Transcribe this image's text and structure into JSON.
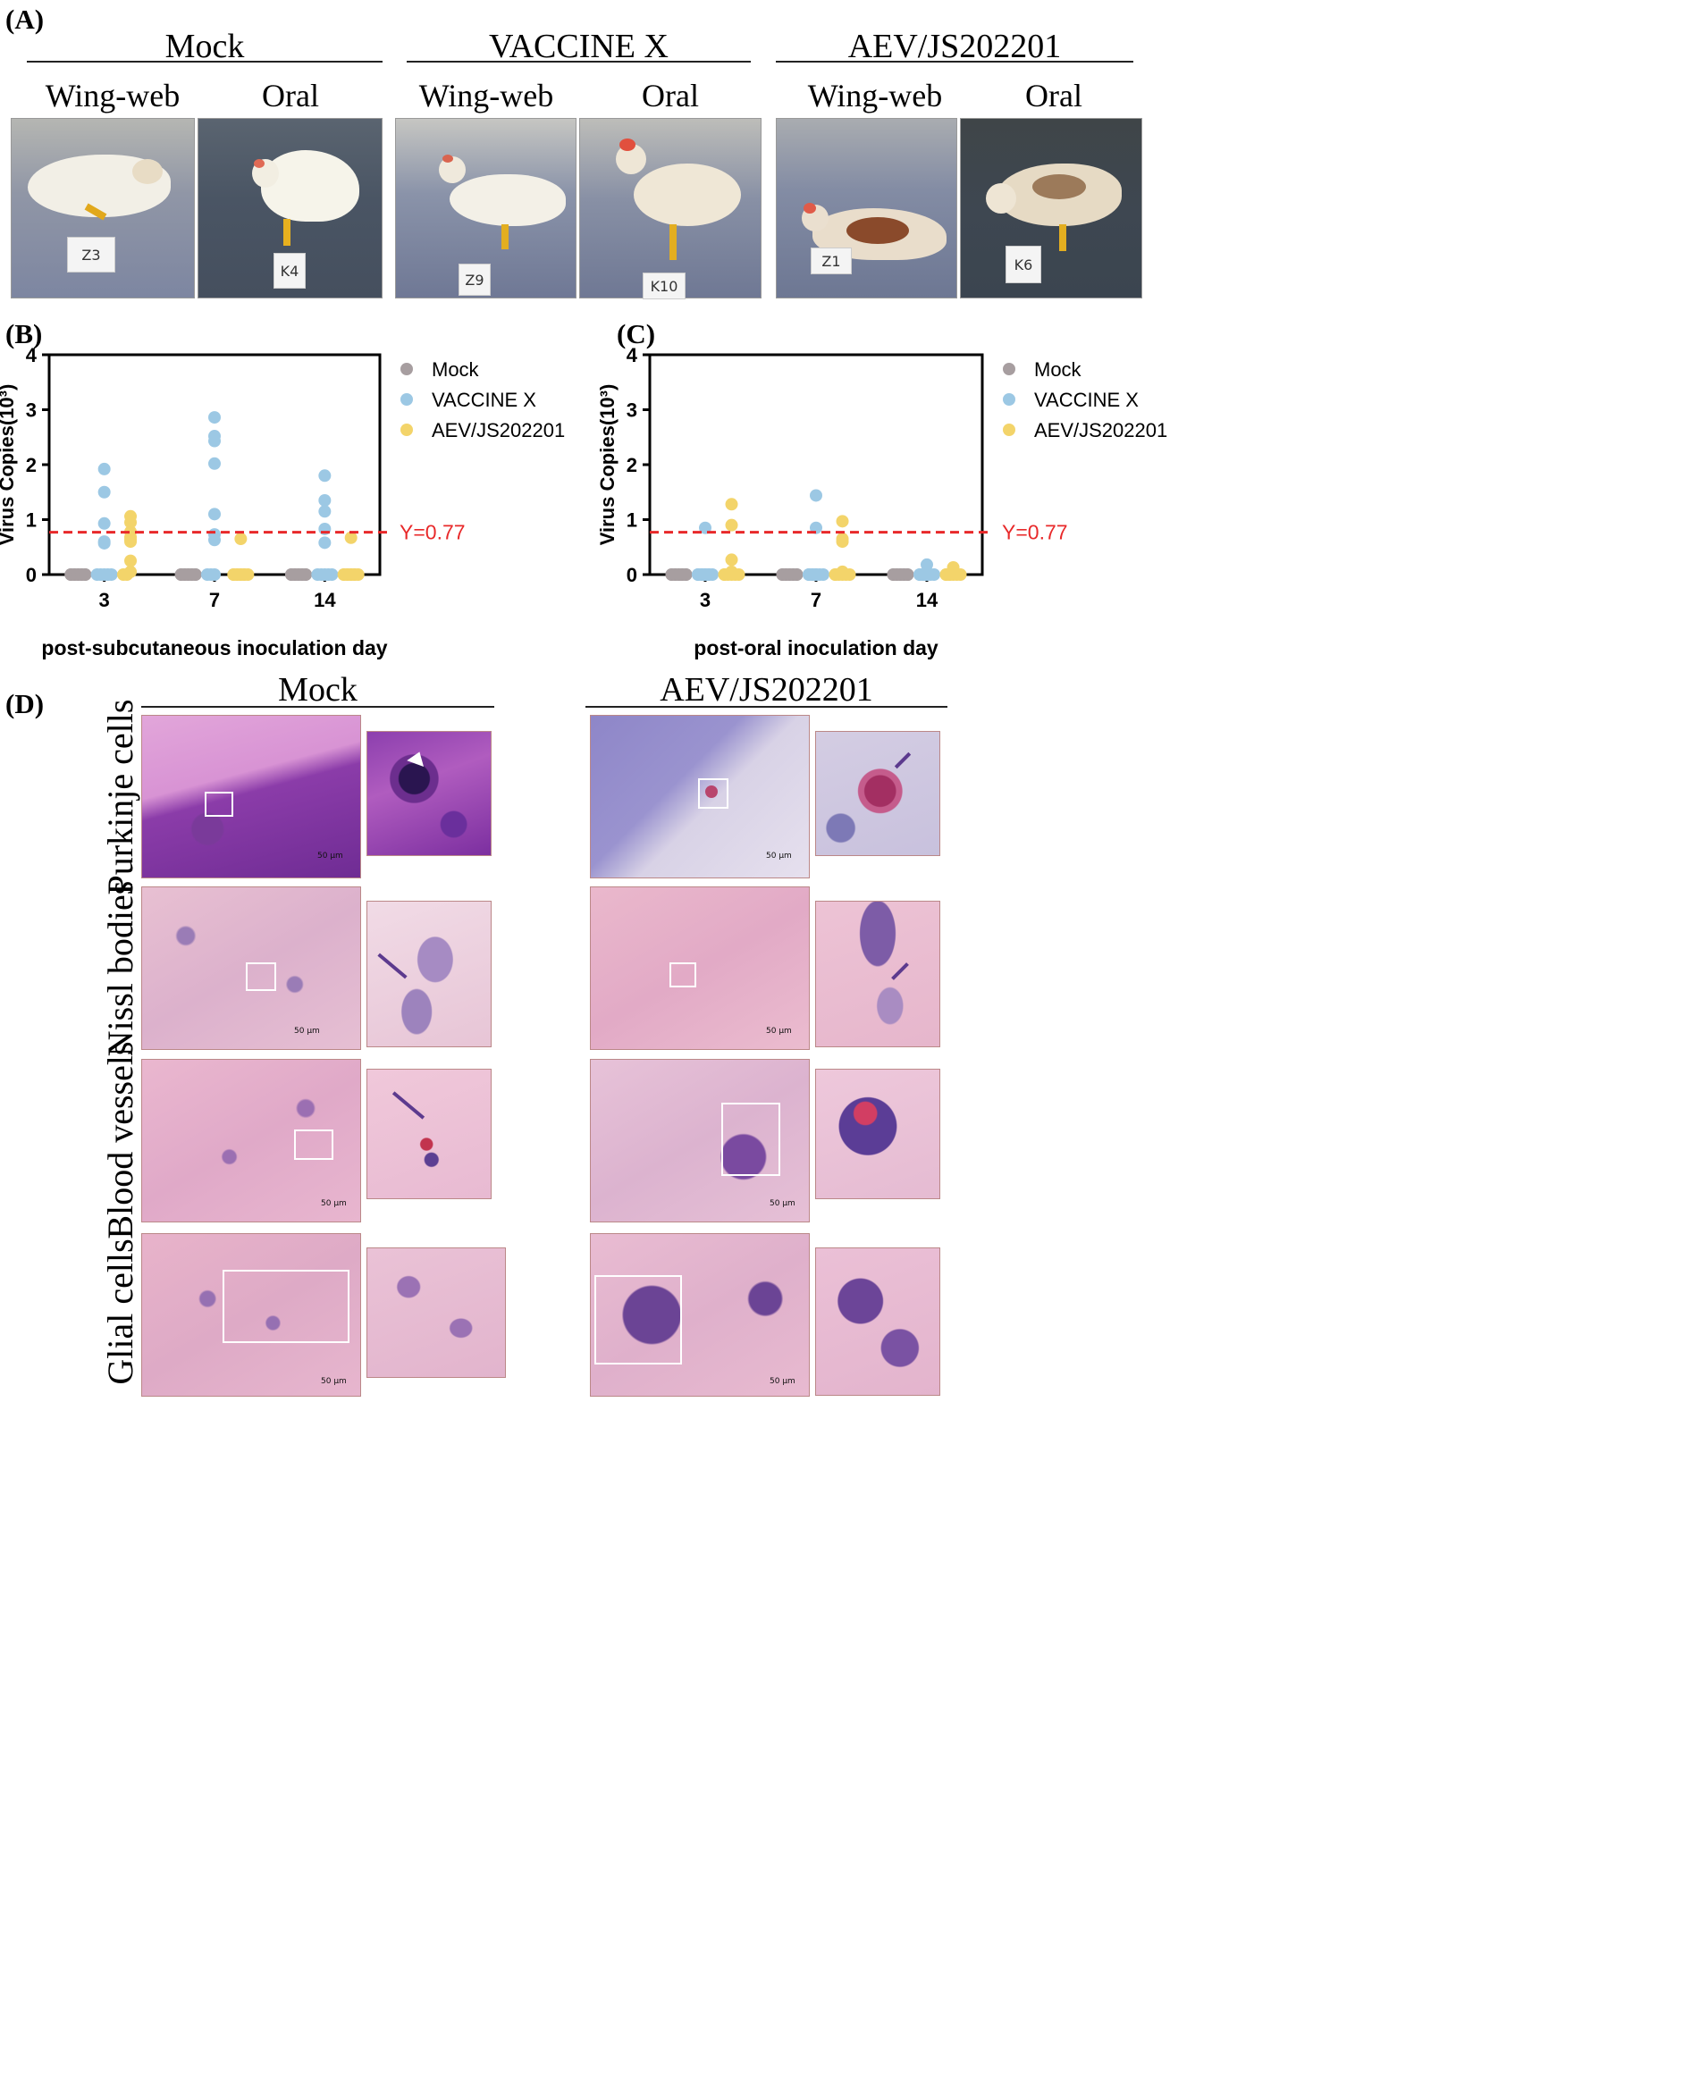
{
  "panel_a": {
    "label": "(A)",
    "groups": [
      {
        "name": "Mock",
        "routes": [
          "Wing-web",
          "Oral"
        ],
        "tags": [
          "Z3",
          "K4"
        ]
      },
      {
        "name": "VACCINE X",
        "routes": [
          "Wing-web",
          "Oral"
        ],
        "tags": [
          "Z9",
          "K10"
        ]
      },
      {
        "name": "AEV/JS202201",
        "routes": [
          "Wing-web",
          "Oral"
        ],
        "tags": [
          "Z1",
          "K6"
        ]
      }
    ]
  },
  "chart_data": [
    {
      "panel_label": "(B)",
      "type": "scatter",
      "ylabel": "Virus Copies(10³)",
      "xlabel": "post-subcutaneous inoculation day",
      "categories": [
        "3",
        "7",
        "14"
      ],
      "ylim": [
        0,
        4
      ],
      "yticks": [
        "0",
        "1",
        "2",
        "3",
        "4"
      ],
      "legend_position": "right",
      "reference_line": {
        "y": 0.77,
        "label": "Y=0.77",
        "color": "#e8292a"
      },
      "series": [
        {
          "name": "Mock",
          "color": "#a79ea0",
          "points": [
            [
              0,
              [
                0,
                0,
                0,
                0,
                0,
                0,
                0,
                0,
                0,
                0
              ]
            ],
            [
              1,
              [
                0,
                0,
                0,
                0,
                0,
                0,
                0,
                0,
                0,
                0
              ]
            ],
            [
              2,
              [
                0,
                0,
                0,
                0,
                0,
                0,
                0,
                0,
                0,
                0
              ]
            ]
          ]
        },
        {
          "name": "VACCINE X",
          "color": "#9cc8e4",
          "points": [
            [
              0,
              [
                1.92,
                1.5,
                0.93,
                0.6,
                0.57,
                0,
                0,
                0,
                0,
                0
              ]
            ],
            [
              1,
              [
                2.86,
                2.52,
                2.43,
                2.02,
                1.1,
                0.73,
                0.63,
                0,
                0,
                0
              ]
            ],
            [
              2,
              [
                1.8,
                1.35,
                1.15,
                0.83,
                0.58,
                0,
                0,
                0,
                0,
                0
              ]
            ]
          ]
        },
        {
          "name": "AEV/JS202201",
          "color": "#f3d46a",
          "points": [
            [
              0,
              [
                1.06,
                0.95,
                0.78,
                0.68,
                0.63,
                0.6,
                0.25,
                0.05,
                0,
                0
              ]
            ],
            [
              1,
              [
                0.65,
                0,
                0,
                0,
                0,
                0,
                0,
                0,
                0,
                0
              ]
            ],
            [
              2,
              [
                0.67,
                0,
                0,
                0,
                0,
                0,
                0,
                0,
                0,
                0
              ]
            ]
          ]
        }
      ]
    },
    {
      "panel_label": "(C)",
      "type": "scatter",
      "ylabel": "Virus Copies(10³)",
      "xlabel": "post-oral inoculation day",
      "categories": [
        "3",
        "7",
        "14"
      ],
      "ylim": [
        0,
        4
      ],
      "yticks": [
        "0",
        "1",
        "2",
        "3",
        "4"
      ],
      "legend_position": "right",
      "reference_line": {
        "y": 0.77,
        "label": "Y=0.77",
        "color": "#e8292a"
      },
      "series": [
        {
          "name": "Mock",
          "color": "#a79ea0",
          "points": [
            [
              0,
              [
                0,
                0,
                0,
                0,
                0,
                0,
                0,
                0,
                0,
                0
              ]
            ],
            [
              1,
              [
                0,
                0,
                0,
                0,
                0,
                0,
                0,
                0,
                0,
                0
              ]
            ],
            [
              2,
              [
                0,
                0,
                0,
                0,
                0,
                0,
                0,
                0,
                0,
                0
              ]
            ]
          ]
        },
        {
          "name": "VACCINE X",
          "color": "#9cc8e4",
          "points": [
            [
              0,
              [
                0.85,
                0,
                0,
                0,
                0,
                0,
                0,
                0,
                0,
                0
              ]
            ],
            [
              1,
              [
                1.44,
                0.85,
                0,
                0,
                0,
                0,
                0,
                0,
                0,
                0
              ]
            ],
            [
              2,
              [
                0.18,
                0.03,
                0,
                0,
                0,
                0,
                0,
                0,
                0,
                0
              ]
            ]
          ]
        },
        {
          "name": "AEV/JS202201",
          "color": "#f3d46a",
          "points": [
            [
              0,
              [
                1.28,
                0.9,
                0.27,
                0.05,
                0,
                0,
                0,
                0,
                0,
                0
              ]
            ],
            [
              1,
              [
                0.97,
                0.65,
                0.6,
                0.05,
                0,
                0,
                0,
                0,
                0,
                0
              ]
            ],
            [
              2,
              [
                0.13,
                0.06,
                0.03,
                0,
                0,
                0,
                0,
                0,
                0,
                0
              ]
            ]
          ]
        }
      ]
    }
  ],
  "panel_d": {
    "label": "(D)",
    "columns": [
      "Mock",
      "AEV/JS202201"
    ],
    "rows": [
      "Purkinje cells",
      "Nissl bodies",
      "Blood vessels",
      "Glial cells"
    ],
    "scale_bar": "50 μm"
  }
}
